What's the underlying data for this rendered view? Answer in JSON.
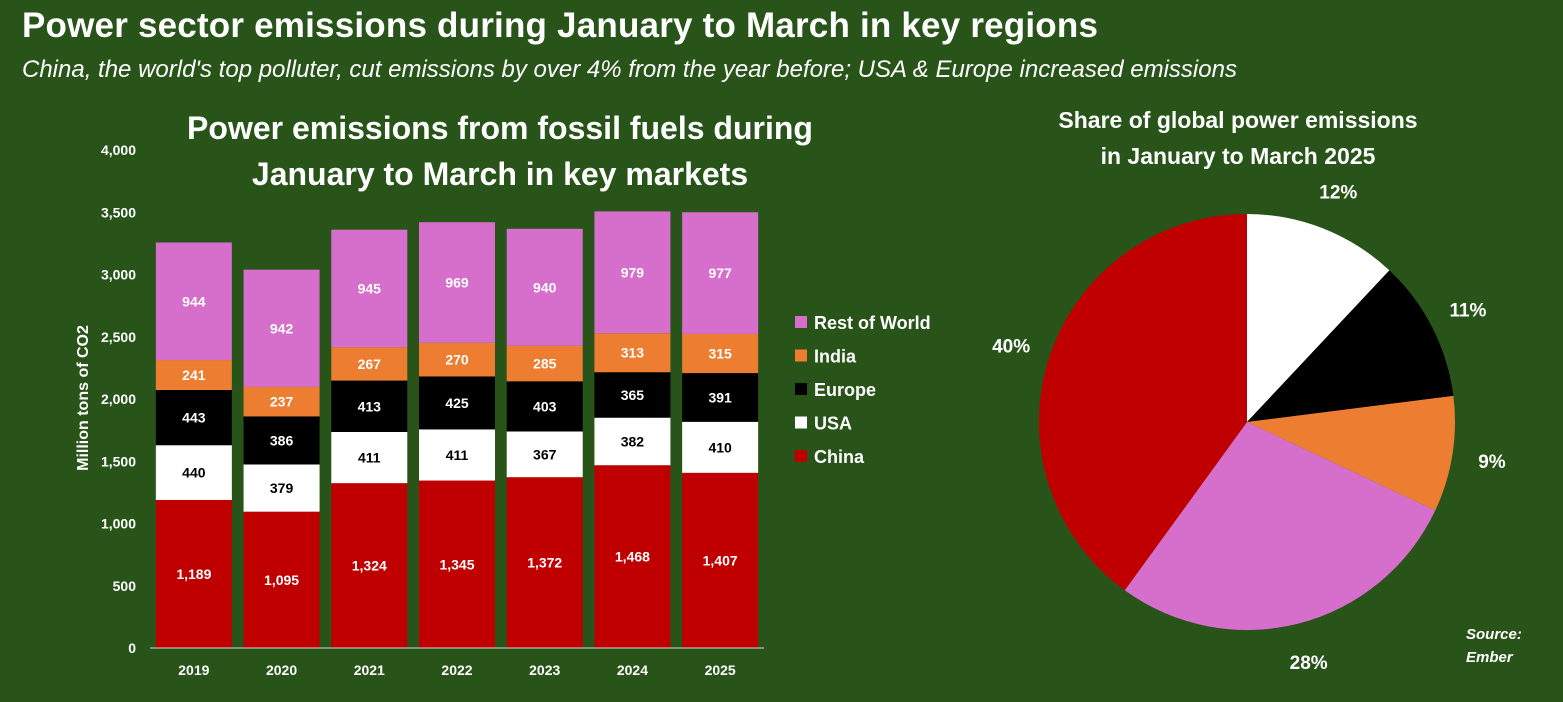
{
  "header": {
    "title": "Power sector emissions during January to March in key regions",
    "subtitle": "China, the world's top polluter, cut emissions by over 4% from the year before; USA & Europe increased emissions"
  },
  "source_label": "Source:",
  "source_value": "Ember",
  "chart_data": [
    {
      "type": "bar",
      "stacked": true,
      "title_lines": [
        "Power emissions from fossil fuels during",
        "January to March in key markets"
      ],
      "ylabel": "Million tons of CO2",
      "xlabel": "",
      "ylim": [
        0,
        4000
      ],
      "yticks": [
        0,
        500,
        1000,
        1500,
        2000,
        2500,
        3000,
        3500,
        4000
      ],
      "ytick_labels": [
        "0",
        "500",
        "1,000",
        "1,500",
        "2,000",
        "2,500",
        "3,000",
        "3,500",
        "4,000"
      ],
      "grid": false,
      "legend_position": "right",
      "categories": [
        "2019",
        "2020",
        "2021",
        "2022",
        "2023",
        "2024",
        "2025"
      ],
      "series": [
        {
          "name": "China",
          "color": "#c00000",
          "label_color": "#ffffff",
          "values": [
            1189,
            1095,
            1324,
            1345,
            1372,
            1468,
            1407
          ],
          "labels": [
            "1,189",
            "1,095",
            "1,324",
            "1,345",
            "1,372",
            "1,468",
            "1,407"
          ]
        },
        {
          "name": "USA",
          "color": "#ffffff",
          "label_color": "#000000",
          "values": [
            440,
            379,
            411,
            411,
            367,
            382,
            410
          ],
          "labels": [
            "440",
            "379",
            "411",
            "411",
            "367",
            "382",
            "410"
          ]
        },
        {
          "name": "Europe",
          "color": "#000000",
          "label_color": "#ffffff",
          "values": [
            443,
            386,
            413,
            425,
            403,
            365,
            391
          ],
          "labels": [
            "443",
            "386",
            "413",
            "425",
            "403",
            "365",
            "391"
          ]
        },
        {
          "name": "India",
          "color": "#ed7d31",
          "label_color": "#ffffff",
          "values": [
            241,
            237,
            267,
            270,
            285,
            313,
            315
          ],
          "labels": [
            "241",
            "237",
            "267",
            "270",
            "285",
            "313",
            "315"
          ]
        },
        {
          "name": "Rest of World",
          "color": "#d66fcb",
          "label_color": "#ffffff",
          "values": [
            944,
            942,
            945,
            969,
            940,
            979,
            977
          ],
          "labels": [
            "944",
            "942",
            "945",
            "969",
            "940",
            "979",
            "977"
          ]
        }
      ],
      "legend_order": [
        "Rest of World",
        "India",
        "Europe",
        "USA",
        "China"
      ]
    },
    {
      "type": "pie",
      "title_lines": [
        "Share of global power emissions",
        "in January to March 2025"
      ],
      "slices": [
        {
          "value": 12,
          "label": "12%",
          "color": "#ffffff"
        },
        {
          "value": 11,
          "label": "11%",
          "color": "#000000"
        },
        {
          "value": 9,
          "label": "9%",
          "color": "#ed7d31"
        },
        {
          "value": 28,
          "label": "28%",
          "color": "#d66fcb"
        },
        {
          "value": 40,
          "label": "40%",
          "color": "#c00000"
        }
      ]
    }
  ]
}
